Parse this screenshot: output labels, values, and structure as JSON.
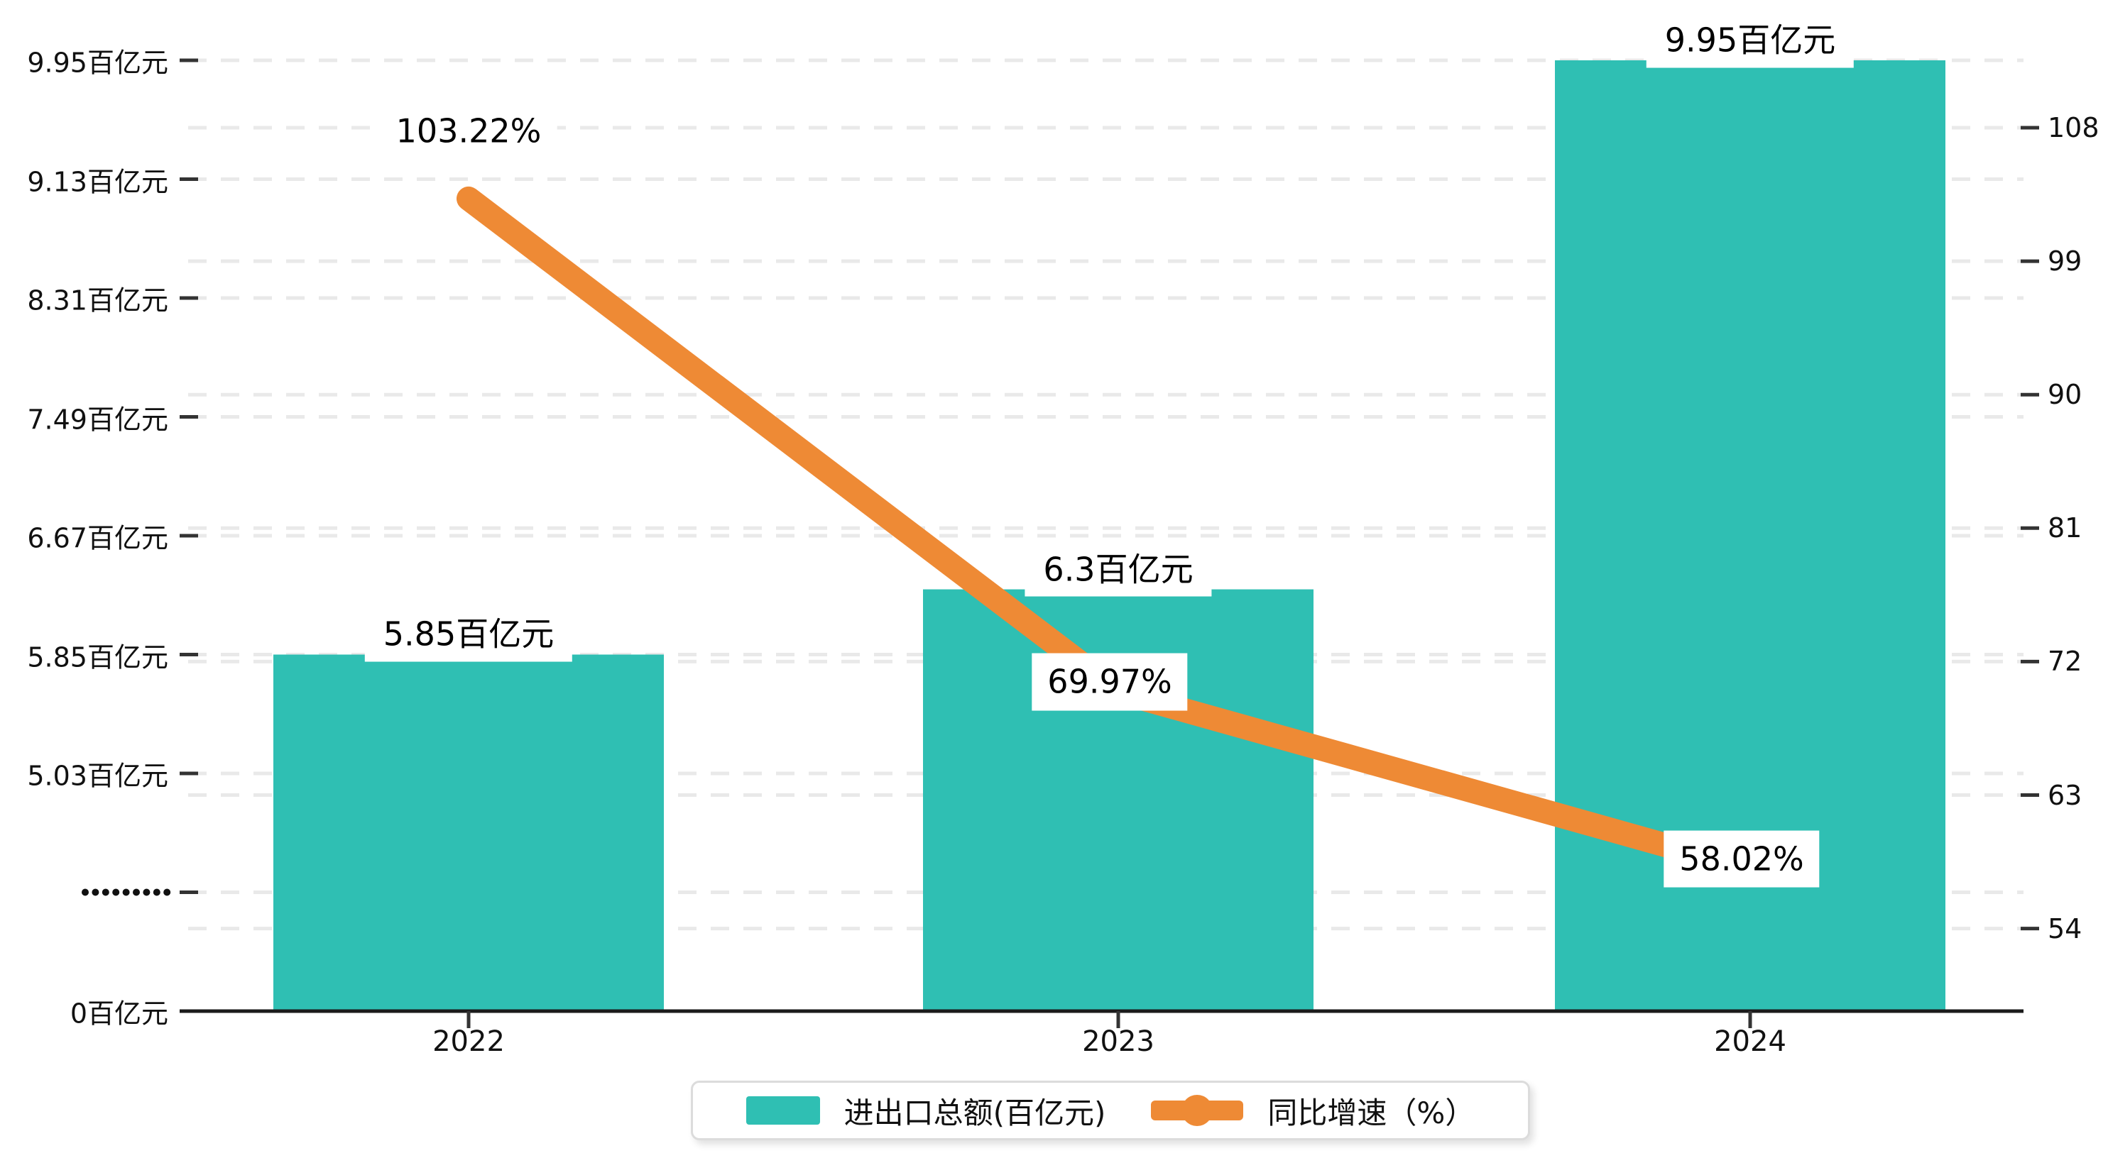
{
  "chart_data": {
    "type": "bar+line combo",
    "categories": [
      "2022",
      "2023",
      "2024"
    ],
    "series": [
      {
        "name": "进出口总额(百亿元)",
        "type": "bar",
        "axis": "left",
        "values": [
          5.85,
          6.3,
          9.95
        ],
        "value_labels": [
          "5.85百亿元",
          "6.3百亿元",
          "9.95百亿元"
        ],
        "color": "#2fbfb3"
      },
      {
        "name": "同比增速（%）",
        "type": "line",
        "axis": "right",
        "values": [
          103.22,
          69.97,
          58.02
        ],
        "value_labels": [
          "103.22%",
          "69.97%",
          "58.02%"
        ],
        "color": "#ee8a35"
      }
    ],
    "yaxis_left": {
      "tick_labels": [
        "9.95百亿元",
        "9.13百亿元",
        "8.31百亿元",
        "7.49百亿元",
        "6.67百亿元",
        "5.85百亿元",
        "5.03百亿元",
        ".........",
        "0百亿元"
      ],
      "tick_values": [
        9.95,
        9.13,
        8.31,
        7.49,
        6.67,
        5.85,
        5.03,
        null,
        0
      ],
      "broken_axis": true,
      "break_row_index": 7
    },
    "yaxis_right": {
      "tick_labels": [
        "108",
        "99",
        "90",
        "81",
        "72",
        "63",
        "54"
      ],
      "tick_values": [
        108,
        99,
        90,
        81,
        72,
        63,
        54
      ]
    },
    "grid": "dashed horizontal gridlines for both axes",
    "legend_position": "bottom-center"
  },
  "legend": {
    "items": [
      {
        "label": "进出口总额(百亿元)",
        "marker": "bar-swatch",
        "color": "#2fbfb3"
      },
      {
        "label": "同比增速（%）",
        "marker": "line-with-dot",
        "color": "#ee8a35"
      }
    ]
  },
  "colors": {
    "bar": "#2fbfb3",
    "line": "#ee8a35",
    "gridline": "#e9e9e9",
    "axis": "#1b1b1b",
    "text": "#111111",
    "legend_border": "#dcdcdc",
    "background": "#ffffff"
  }
}
